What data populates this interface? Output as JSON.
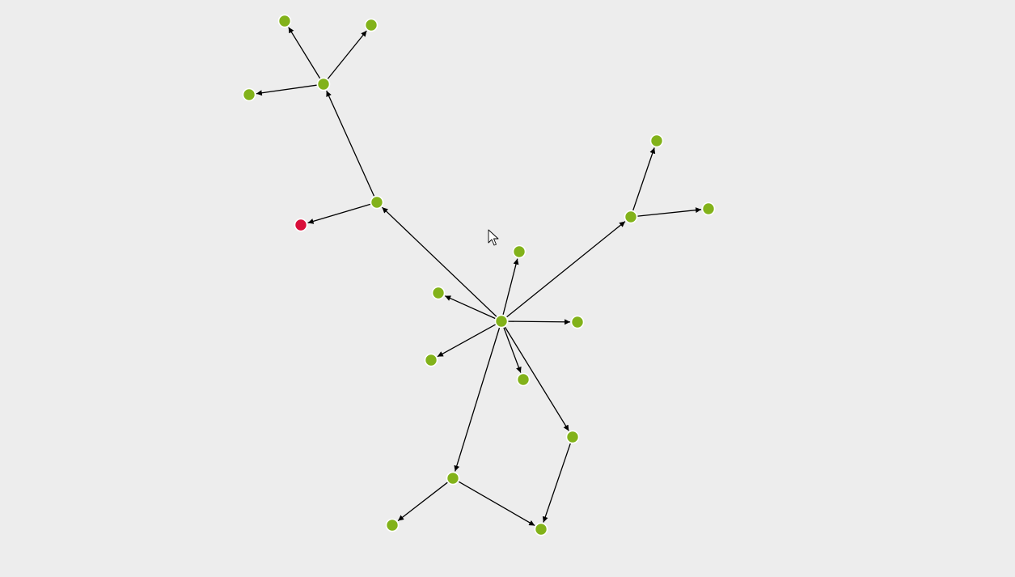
{
  "graph": {
    "colors": {
      "background": "#ededed",
      "node_default": "#82b21a",
      "node_highlight": "#d90f3a",
      "edge": "#000000",
      "node_border": "#ffffff"
    },
    "nodes": [
      {
        "id": "hub",
        "color": "node_default"
      },
      {
        "id": "a",
        "color": "node_default"
      },
      {
        "id": "b",
        "color": "node_default"
      },
      {
        "id": "c",
        "color": "node_default"
      },
      {
        "id": "d",
        "color": "node_default"
      },
      {
        "id": "e",
        "color": "node_default"
      },
      {
        "id": "f",
        "color": "node_default"
      },
      {
        "id": "g",
        "color": "node_default"
      },
      {
        "id": "h",
        "color": "node_default"
      },
      {
        "id": "i",
        "color": "node_default"
      },
      {
        "id": "j",
        "color": "node_default"
      },
      {
        "id": "k",
        "color": "node_highlight"
      },
      {
        "id": "l",
        "color": "node_default"
      },
      {
        "id": "m",
        "color": "node_default"
      },
      {
        "id": "n",
        "color": "node_default"
      },
      {
        "id": "o",
        "color": "node_default"
      },
      {
        "id": "p",
        "color": "node_default"
      },
      {
        "id": "q",
        "color": "node_default"
      },
      {
        "id": "r",
        "color": "node_default"
      },
      {
        "id": "s",
        "color": "node_default"
      }
    ],
    "edges": [
      {
        "from": "hub",
        "to": "a"
      },
      {
        "from": "hub",
        "to": "b"
      },
      {
        "from": "hub",
        "to": "c"
      },
      {
        "from": "hub",
        "to": "d"
      },
      {
        "from": "hub",
        "to": "e"
      },
      {
        "from": "hub",
        "to": "f"
      },
      {
        "from": "hub",
        "to": "g"
      },
      {
        "from": "hub",
        "to": "h"
      },
      {
        "from": "hub",
        "to": "i"
      },
      {
        "from": "g",
        "to": "p"
      },
      {
        "from": "g",
        "to": "q"
      },
      {
        "from": "h",
        "to": "r"
      },
      {
        "from": "h",
        "to": "s"
      },
      {
        "from": "i",
        "to": "s"
      },
      {
        "from": "f",
        "to": "k"
      },
      {
        "from": "f",
        "to": "j"
      },
      {
        "from": "j",
        "to": "l"
      },
      {
        "from": "j",
        "to": "m"
      },
      {
        "from": "j",
        "to": "n"
      }
    ]
  },
  "cursor": {
    "icon": "mouse-pointer-icon"
  }
}
